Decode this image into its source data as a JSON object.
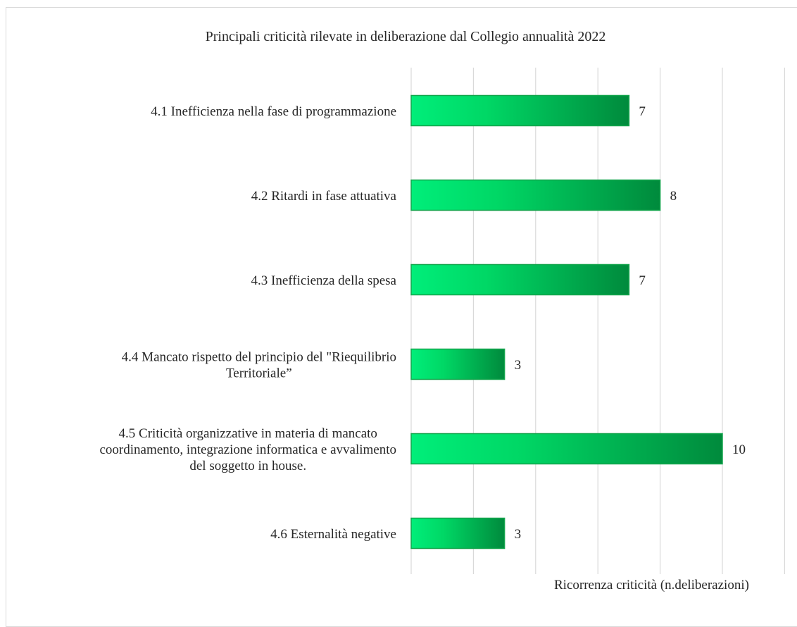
{
  "chart_data": {
    "type": "bar",
    "orientation": "horizontal",
    "title": "Principali criticità rilevate in deliberazione dal Collegio annualità 2022",
    "xlabel": "Ricorrenza criticità (n.deliberazioni)",
    "ylabel": "",
    "categories": [
      [
        "4.1 Inefficienza nella fase di programmazione"
      ],
      [
        "4.2 Ritardi in fase attuativa"
      ],
      [
        "4.3 Inefficienza della spesa"
      ],
      [
        "4.4 Mancato rispetto del principio del \"Riequilibrio",
        "Territoriale”"
      ],
      [
        "4.5 Criticità organizzative in materia di mancato",
        "coordinamento, integrazione informatica e avvalimento",
        "del soggetto in house."
      ],
      [
        "4.6 Esternalità negative"
      ]
    ],
    "values": [
      7,
      8,
      7,
      3,
      10,
      3
    ],
    "xlim": [
      0,
      12
    ],
    "grid": true,
    "legend": "none",
    "colors": {
      "bar_start": "#00ee7a",
      "bar_mid": "#00d765",
      "bar_end": "#008a3c",
      "bar_border": "#14a54d",
      "grid": "#d9d9d9",
      "text": "#262626"
    }
  }
}
